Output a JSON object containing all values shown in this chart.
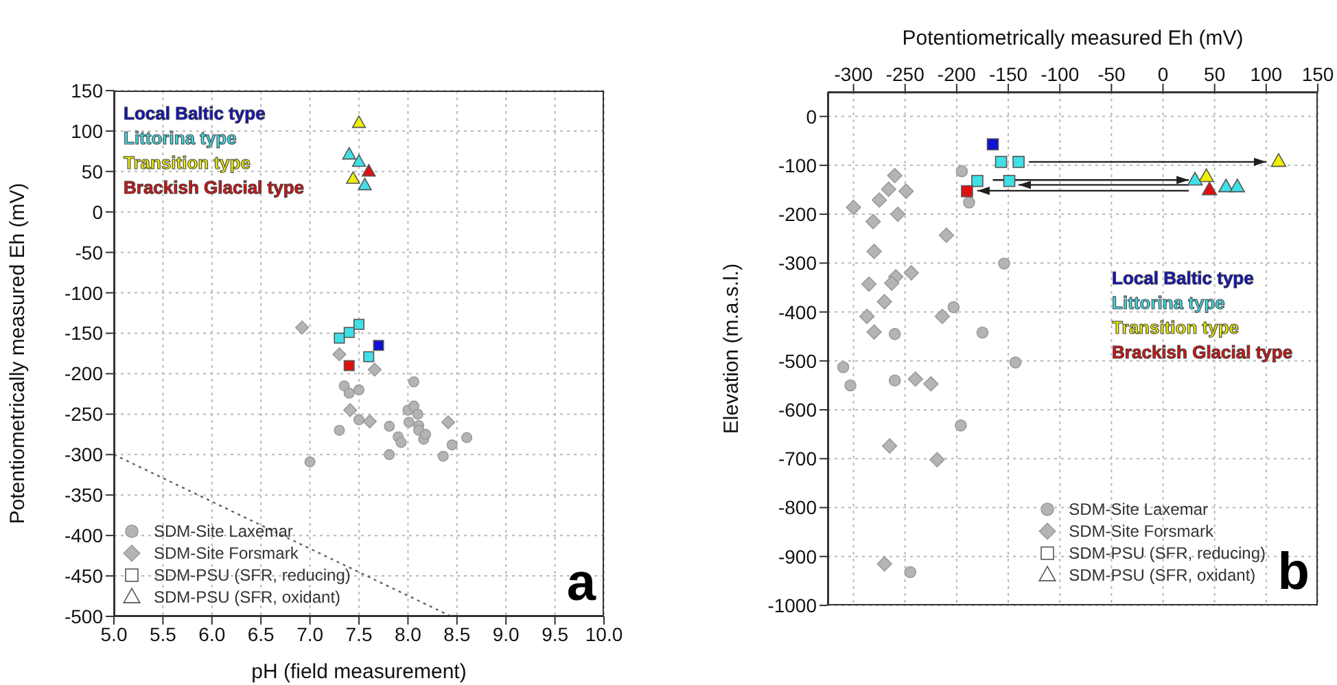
{
  "chart_data": [
    {
      "type": "scatter",
      "xlabel": "pH (field measurement)",
      "ylabel": "Potentiometrically measured Eh (mV)",
      "xlim": [
        5,
        10
      ],
      "xticks": [
        {
          "value": 5,
          "label": "5.0"
        },
        {
          "value": 5.5,
          "label": "5.5"
        },
        {
          "value": 6,
          "label": "6.0"
        },
        {
          "value": 6.5,
          "label": "6.5"
        },
        {
          "value": 7,
          "label": "7.0"
        },
        {
          "value": 7.5,
          "label": "7.5"
        },
        {
          "value": 8,
          "label": "8.0"
        },
        {
          "value": 8.5,
          "label": "8.5"
        },
        {
          "value": 9,
          "label": "9.0"
        },
        {
          "value": 9.5,
          "label": "9.5"
        },
        {
          "value": 10,
          "label": "10.0"
        }
      ],
      "ylim": [
        -500,
        150
      ],
      "yticks": [
        -500,
        -450,
        -400,
        -350,
        -300,
        -250,
        -200,
        -150,
        -100,
        -50,
        0,
        50,
        100,
        150
      ],
      "grid": true,
      "legend": "bottom left",
      "annotations": [
        "SDM-PSU (SFR, reducing)",
        "SDM-PSU (SFR, oxidant)",
        "a"
      ],
      "series": [
        {
          "name": "SDM-Site Laxemar",
          "color": "#b4b4b4",
          "marker": "circle",
          "x": [
            7.35,
            7.4,
            7.5,
            7.3,
            7.5,
            8.06,
            7.81,
            7.81,
            7.9,
            7.93,
            8.0,
            8.06,
            8.1,
            8.01,
            8.11,
            8.11,
            8.16,
            8.18,
            8.36,
            8.45,
            8.6,
            7.0
          ],
          "values": [
            -215,
            -224,
            -220,
            -270,
            -257,
            -210,
            -265,
            -300,
            -278,
            -285,
            -245,
            -240,
            -250,
            -260,
            -264,
            -270,
            -281,
            -275,
            -302,
            -288,
            -279,
            -309
          ]
        },
        {
          "type": "scatter",
          "name": "SDM-Site Forsmark",
          "color": "#b4b4b4",
          "marker": "diamond",
          "x": [
            6.92,
            7.3,
            7.41,
            7.61,
            7.66,
            8.41
          ],
          "values": [
            -143,
            -176,
            -245,
            -259,
            -195,
            -260
          ]
        },
        {
          "type": "line",
          "color": "#606060",
          "marker": "none",
          "line_style": "dotted",
          "x": [
            5,
            8.44
          ],
          "values": [
            -300,
            -500
          ]
        },
        {
          "type": "scatter",
          "name": "Local Baltic type",
          "color": "#1010d0",
          "marker": "square",
          "x": [
            7.7
          ],
          "values": [
            -165
          ]
        },
        {
          "type": "scatter",
          "name": "Littorina type",
          "color": "#40e0e8",
          "marker": "square",
          "x": [
            7.3,
            7.4,
            7.5,
            7.6
          ],
          "values": [
            -156,
            -149,
            -139,
            -179
          ]
        },
        {
          "type": "scatter",
          "name": "Transition type",
          "color": "#f0f000",
          "marker": "triangle",
          "x": [
            7.5,
            7.44
          ],
          "values": [
            110,
            41
          ]
        },
        {
          "type": "scatter",
          "name": "Brackish Glacial type",
          "color": "#e01010",
          "marker": "square",
          "x": [
            7.4
          ],
          "values": [
            -190
          ]
        },
        {
          "type": "scatter",
          "color": "#40e0e8",
          "marker": "triangle",
          "x": [
            7.4,
            7.5,
            7.56
          ],
          "values": [
            71,
            62,
            33
          ]
        },
        {
          "type": "scatter",
          "color": "#e01010",
          "marker": "triangle",
          "x": [
            7.6
          ],
          "values": [
            50
          ]
        }
      ]
    },
    {
      "type": "scatter",
      "xlabel": "Potentiometrically measured Eh (mV)",
      "ylabel": "Elevation (m.a.s.l.)",
      "xlim": [
        -325,
        150
      ],
      "xticks": [
        -300,
        -250,
        -200,
        -150,
        -100,
        -50,
        0,
        50,
        100,
        150
      ],
      "ylim": [
        -1000,
        50
      ],
      "yticks": [
        -1000,
        -900,
        -800,
        -700,
        -600,
        -500,
        -400,
        -300,
        -200,
        -100,
        0
      ],
      "grid": true,
      "legend": "bottom right",
      "annotations": [
        "SDM-PSU (SFR, reducing)",
        "SDM-PSU (SFR, oxidant)",
        "b"
      ],
      "series": [
        {
          "name": "SDM-Site Laxemar",
          "color": "#b4b4b4",
          "marker": "circle",
          "x": [
            -195,
            -188,
            -154,
            -203,
            -260,
            -175,
            -143,
            -310,
            -303,
            -260,
            -196,
            -245
          ],
          "values": [
            -112,
            -176,
            -301,
            -390,
            -445,
            -442,
            -503,
            -513,
            -550,
            -540,
            -632,
            -932
          ]
        },
        {
          "type": "scatter",
          "name": "SDM-Site Forsmark",
          "color": "#b4b4b4",
          "marker": "diamond",
          "x": [
            -300,
            -260,
            -266,
            -275,
            -249,
            -257,
            -281,
            -280,
            -210,
            -244,
            -259,
            -263,
            -285,
            -270,
            -214,
            -287,
            -280,
            -240,
            -225,
            -265,
            -219,
            -270
          ],
          "values": [
            -186,
            -121,
            -149,
            -171,
            -153,
            -200,
            -215,
            -276,
            -243,
            -320,
            -328,
            -341,
            -343,
            -379,
            -409,
            -409,
            -441,
            -537,
            -547,
            -674,
            -702,
            -915
          ]
        },
        {
          "type": "line",
          "color": "#202020",
          "marker": "none",
          "line_style": "solid",
          "x": [
            -130,
            100
          ],
          "values": [
            -93,
            -93
          ]
        },
        {
          "type": "line",
          "color": "#202020",
          "marker": "none",
          "line_style": "solid",
          "x": [
            -165,
            25
          ],
          "values": [
            -130,
            -130
          ]
        },
        {
          "type": "line",
          "color": "#202020",
          "marker": "none",
          "line_style": "solid",
          "x": [
            25,
            -140
          ],
          "values": [
            -140,
            -140
          ]
        },
        {
          "type": "line",
          "color": "#202020",
          "marker": "none",
          "line_style": "solid",
          "x": [
            25,
            -180
          ],
          "values": [
            -152,
            -152
          ]
        },
        {
          "type": "scatter",
          "name": "Local Baltic type",
          "color": "#1010d0",
          "marker": "square",
          "x": [
            -165
          ],
          "values": [
            -57
          ]
        },
        {
          "type": "scatter",
          "name": "Littorina type",
          "color": "#40e0e8",
          "marker": "square",
          "x": [
            -157,
            -140,
            -180,
            -149
          ],
          "values": [
            -93,
            -93,
            -132,
            -132
          ]
        },
        {
          "type": "scatter",
          "name": "Transition type",
          "color": "#f0f000",
          "marker": "triangle",
          "x": [
            112,
            42
          ],
          "values": [
            -92,
            -123
          ]
        },
        {
          "type": "scatter",
          "name": "Brackish Glacial type",
          "color": "#e01010",
          "marker": "square",
          "x": [
            -190
          ],
          "values": [
            -153
          ]
        },
        {
          "type": "scatter",
          "color": "#40e0e8",
          "marker": "triangle",
          "x": [
            31,
            61,
            72
          ],
          "values": [
            -130,
            -144,
            -144
          ]
        },
        {
          "type": "scatter",
          "color": "#e01010",
          "marker": "triangle",
          "x": [
            45
          ],
          "values": [
            -150
          ]
        }
      ]
    }
  ]
}
